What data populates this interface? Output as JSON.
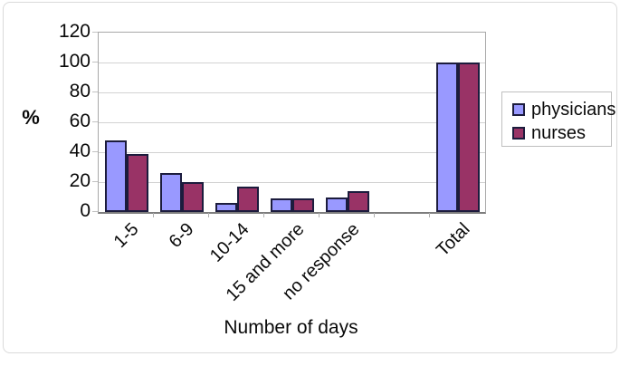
{
  "chart_data": {
    "type": "bar",
    "title": "",
    "xlabel": "Number of days",
    "ylabel": "%",
    "categories": [
      "1-5",
      "6-9",
      "10-14",
      "15 and more",
      "no response",
      "Total"
    ],
    "series": [
      {
        "name": "physicians",
        "color": "#9999FF",
        "values": [
          48,
          26,
          6,
          9,
          10,
          100
        ]
      },
      {
        "name": "nurses",
        "color": "#993366",
        "values": [
          39,
          20,
          17,
          9,
          14,
          100
        ]
      }
    ],
    "ylim": [
      0,
      120
    ],
    "yticks": [
      0,
      20,
      40,
      60,
      80,
      100,
      120
    ],
    "grid": true,
    "legend_position": "right",
    "blank_slot_before_last": true,
    "bar_border_color": "#1c1c3d"
  }
}
